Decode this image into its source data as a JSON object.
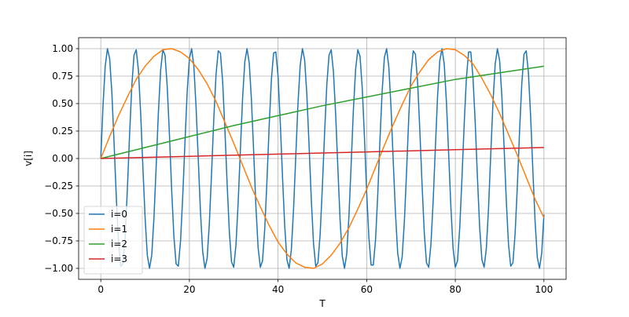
{
  "chart_data": {
    "type": "line",
    "xlabel": "T",
    "ylabel": "v[i]",
    "xlim": [
      -5,
      105
    ],
    "ylim": [
      -1.1,
      1.1
    ],
    "xticks": [
      0,
      20,
      40,
      60,
      80,
      100
    ],
    "yticks": [
      {
        "value": -1,
        "label": "−1.00"
      },
      {
        "value": -0.75,
        "label": "−0.75"
      },
      {
        "value": -0.5,
        "label": "−0.50"
      },
      {
        "value": -0.25,
        "label": "−0.25"
      },
      {
        "value": 0,
        "label": "0.00"
      },
      {
        "value": 0.25,
        "label": "0.25"
      },
      {
        "value": 0.5,
        "label": "0.50"
      },
      {
        "value": 0.75,
        "label": "0.75"
      },
      {
        "value": 1,
        "label": "1.00"
      }
    ],
    "grid": true,
    "legend": "lower left",
    "series": [
      {
        "name": "i=0",
        "color": "#1f77b4",
        "x": [
          0,
          0.5,
          1,
          1.5,
          2,
          2.5,
          3,
          3.5,
          4,
          4.5,
          5,
          5.5,
          6,
          6.5,
          7,
          7.5,
          8,
          8.5,
          9,
          9.5,
          10,
          10.5,
          11,
          11.5,
          12,
          12.5,
          13,
          13.5,
          14,
          14.5,
          15,
          15.5,
          16,
          16.5,
          17,
          17.5,
          18,
          18.5,
          19,
          19.5,
          20,
          20.5,
          21,
          21.5,
          22,
          22.5,
          23,
          23.5,
          24,
          24.5,
          25,
          25.5,
          26,
          26.5,
          27,
          27.5,
          28,
          28.5,
          29,
          29.5,
          30,
          30.5,
          31,
          31.5,
          32,
          32.5,
          33,
          33.5,
          34,
          34.5,
          35,
          35.5,
          36,
          36.5,
          37,
          37.5,
          38,
          38.5,
          39,
          39.5,
          40,
          40.5,
          41,
          41.5,
          42,
          42.5,
          43,
          43.5,
          44,
          44.5,
          45,
          45.5,
          46,
          46.5,
          47,
          47.5,
          48,
          48.5,
          49,
          49.5,
          50,
          50.5,
          51,
          51.5,
          52,
          52.5,
          53,
          53.5,
          54,
          54.5,
          55,
          55.5,
          56,
          56.5,
          57,
          57.5,
          58,
          58.5,
          59,
          59.5,
          60,
          60.5,
          61,
          61.5,
          62,
          62.5,
          63,
          63.5,
          64,
          64.5,
          65,
          65.5,
          66,
          66.5,
          67,
          67.5,
          68,
          68.5,
          69,
          69.5,
          70,
          70.5,
          71,
          71.5,
          72,
          72.5,
          73,
          73.5,
          74,
          74.5,
          75,
          75.5,
          76,
          76.5,
          77,
          77.5,
          78,
          78.5,
          79,
          79.5,
          80,
          80.5,
          81,
          81.5,
          82,
          82.5,
          83,
          83.5,
          84,
          84.5,
          85,
          85.5,
          86,
          86.5,
          87,
          87.5,
          88,
          88.5,
          89,
          89.5,
          90,
          90.5,
          91,
          91.5,
          92,
          92.5,
          93,
          93.5,
          94,
          94.5,
          95,
          95.5,
          96,
          96.5,
          97,
          97.5,
          98,
          98.5,
          99,
          99.5,
          100
        ],
        "values": [
          0,
          0.48,
          0.84,
          1.0,
          0.91,
          0.6,
          0.14,
          -0.35,
          -0.76,
          -0.98,
          -0.96,
          -0.71,
          -0.28,
          0.22,
          0.66,
          0.94,
          0.99,
          0.8,
          0.41,
          -0.08,
          -0.54,
          -0.88,
          -1.0,
          -0.88,
          -0.54,
          -0.07,
          0.42,
          0.8,
          0.99,
          0.94,
          0.65,
          0.21,
          -0.29,
          -0.71,
          -0.96,
          -0.98,
          -0.75,
          -0.34,
          0.15,
          0.61,
          0.91,
          1.0,
          0.84,
          0.47,
          -0.01,
          -0.49,
          -0.85,
          -1.0,
          -0.91,
          -0.59,
          -0.13,
          0.36,
          0.76,
          0.98,
          0.96,
          0.7,
          0.27,
          -0.22,
          -0.66,
          -0.94,
          -0.99,
          -0.79,
          -0.4,
          0.08,
          0.55,
          0.88,
          1.0,
          0.87,
          0.53,
          0.06,
          -0.43,
          -0.81,
          -0.99,
          -0.93,
          -0.64,
          -0.2,
          0.3,
          0.72,
          0.96,
          0.97,
          0.75,
          0.33,
          -0.16,
          -0.61,
          -0.92,
          -1.0,
          -0.83,
          -0.46,
          0.02,
          0.5,
          0.85,
          1.0,
          0.9,
          0.58,
          0.12,
          -0.37,
          -0.77,
          -0.98,
          -0.95,
          -0.69,
          -0.26,
          0.23,
          0.67,
          0.94,
          0.99,
          0.79,
          0.4,
          -0.09,
          -0.56,
          -0.89,
          -1.0,
          -0.87,
          -0.52,
          -0.05,
          0.44,
          0.81,
          0.99,
          0.93,
          0.64,
          0.19,
          -0.31,
          -0.72,
          -0.97,
          -0.97,
          -0.74,
          -0.33,
          0.17,
          0.62,
          0.92,
          1.0,
          0.83,
          0.46,
          -0.03,
          -0.5,
          -0.86,
          -1.0,
          -0.9,
          -0.58,
          -0.12,
          0.38,
          0.77,
          0.98,
          0.95,
          0.69,
          0.25,
          -0.24,
          -0.68,
          -0.95,
          -0.99,
          -0.78,
          -0.39,
          0.1,
          0.57,
          0.89,
          1.0,
          0.86,
          0.51,
          0.04,
          -0.44,
          -0.82,
          -0.99,
          -0.93,
          -0.63,
          -0.18,
          0.31,
          0.73,
          0.97,
          0.97,
          0.73,
          0.32,
          -0.18,
          -0.63,
          -0.92,
          -0.99,
          -0.82,
          -0.45,
          0.04,
          0.51,
          0.86,
          1.0,
          0.89,
          0.57,
          0.11,
          -0.38,
          -0.78,
          -0.98,
          -0.95,
          -0.68,
          -0.25,
          0.25,
          0.68,
          0.95,
          0.98,
          0.78,
          0.38,
          -0.11,
          -0.57,
          -0.9,
          -1.0,
          -0.86,
          -0.51
        ]
      },
      {
        "name": "i=1",
        "color": "#ff7f0e",
        "x": [
          0,
          2,
          4,
          6,
          8,
          10,
          12,
          14,
          16,
          18,
          20,
          22,
          24,
          26,
          28,
          30,
          32,
          34,
          36,
          38,
          40,
          42,
          44,
          46,
          48,
          50,
          52,
          54,
          56,
          58,
          60,
          62,
          64,
          66,
          68,
          70,
          72,
          74,
          76,
          78,
          80,
          82,
          84,
          86,
          88,
          90,
          92,
          94,
          96,
          98,
          100
        ],
        "values": [
          0,
          0.2,
          0.39,
          0.56,
          0.72,
          0.84,
          0.93,
          0.99,
          1.0,
          0.97,
          0.91,
          0.81,
          0.68,
          0.52,
          0.33,
          0.14,
          -0.06,
          -0.26,
          -0.44,
          -0.61,
          -0.76,
          -0.87,
          -0.95,
          -0.99,
          -1.0,
          -0.96,
          -0.88,
          -0.77,
          -0.63,
          -0.46,
          -0.28,
          -0.08,
          0.12,
          0.31,
          0.49,
          0.66,
          0.79,
          0.9,
          0.97,
          1.0,
          0.99,
          0.94,
          0.86,
          0.73,
          0.58,
          0.41,
          0.22,
          0.03,
          -0.17,
          -0.37,
          -0.54
        ]
      },
      {
        "name": "i=2",
        "color": "#2ca02c",
        "x": [
          0,
          10,
          20,
          30,
          40,
          50,
          60,
          70,
          80,
          90,
          100
        ],
        "values": [
          0,
          0.1,
          0.2,
          0.3,
          0.39,
          0.48,
          0.56,
          0.64,
          0.72,
          0.78,
          0.84
        ]
      },
      {
        "name": "i=3",
        "color": "#d62728",
        "x": [
          0,
          10,
          20,
          30,
          40,
          50,
          60,
          70,
          80,
          90,
          100
        ],
        "values": [
          0,
          0.01,
          0.02,
          0.03,
          0.04,
          0.05,
          0.06,
          0.07,
          0.08,
          0.09,
          0.1
        ]
      }
    ]
  }
}
